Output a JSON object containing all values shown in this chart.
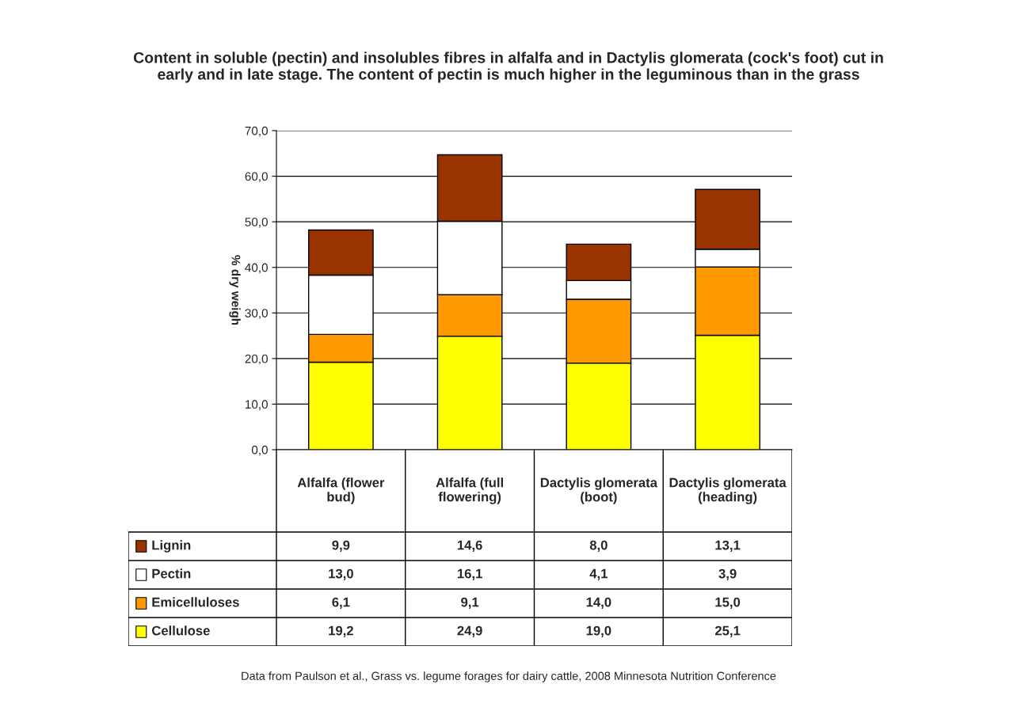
{
  "chart_data": {
    "type": "bar",
    "stacked": true,
    "title": "Content in soluble (pectin) and insolubles fibres in alfalfa and in Dactylis glomerata (cock's foot) cut in early and in late stage. The content of pectin is much higher in the leguminous than in the grass",
    "ylabel": "% dry weigh",
    "categories": [
      "Alfalfa (flower bud)",
      "Alfalfa (full flowering)",
      "Dactylis glomerata (boot)",
      "Dactylis glomerata (heading)"
    ],
    "series": [
      {
        "name": "Cellulose",
        "color": "#ffff00",
        "values": [
          19.2,
          24.9,
          19.0,
          25.1
        ],
        "value_labels": [
          "19,2",
          "24,9",
          "19,0",
          "25,1"
        ]
      },
      {
        "name": "Emicelluloses",
        "color": "#ff9900",
        "values": [
          6.1,
          9.1,
          14.0,
          15.0
        ],
        "value_labels": [
          "6,1",
          "9,1",
          "14,0",
          "15,0"
        ]
      },
      {
        "name": "Pectin",
        "color": "#ffffff",
        "values": [
          13.0,
          16.1,
          4.1,
          3.9
        ],
        "value_labels": [
          "13,0",
          "16,1",
          "4,1",
          "3,9"
        ]
      },
      {
        "name": "Lignin",
        "color": "#993300",
        "values": [
          9.9,
          14.6,
          8.0,
          13.1
        ],
        "value_labels": [
          "9,9",
          "14,6",
          "8,0",
          "13,1"
        ]
      }
    ],
    "ylim": [
      0,
      70
    ],
    "yticks": [
      {
        "value": 0,
        "label": "0,0"
      },
      {
        "value": 10,
        "label": "10,0"
      },
      {
        "value": 20,
        "label": "20,0"
      },
      {
        "value": 30,
        "label": "30,0"
      },
      {
        "value": 40,
        "label": "40,0"
      },
      {
        "value": 50,
        "label": "50,0"
      },
      {
        "value": 60,
        "label": "60,0"
      },
      {
        "value": 70,
        "label": "70,0"
      }
    ],
    "grid": "y",
    "legend": "bottom left",
    "annotations": [
      "Data from Paulson et al., Grass vs. legume forages for dairy cattle, 2008 Minnesota Nutrition Conference"
    ]
  }
}
